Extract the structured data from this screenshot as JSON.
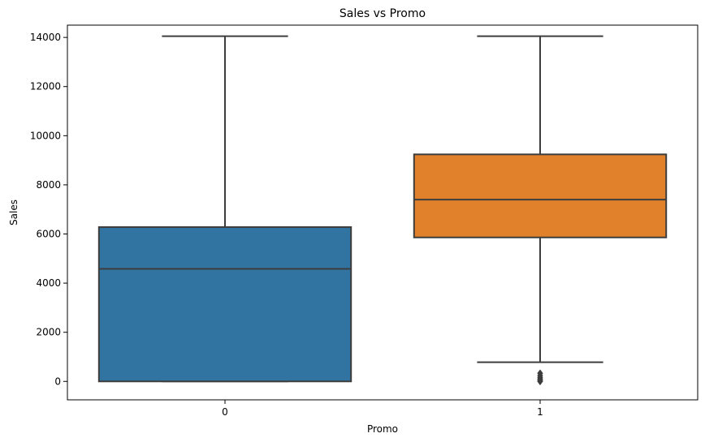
{
  "chart_data": {
    "type": "box",
    "title": "Sales vs Promo",
    "xlabel": "Promo",
    "ylabel": "Sales",
    "categories": [
      "0",
      "1"
    ],
    "ylim": [
      -750,
      14500
    ],
    "yticks": [
      0,
      2000,
      4000,
      6000,
      8000,
      10000,
      12000,
      14000
    ],
    "grid": false,
    "legend": "none",
    "boxes": [
      {
        "category": "0",
        "whisker_low": 0,
        "q1": 0,
        "median": 4580,
        "q3": 6280,
        "whisker_high": 14050,
        "outliers": [],
        "color": "#3274a1"
      },
      {
        "category": "1",
        "whisker_low": 780,
        "q1": 5860,
        "median": 7400,
        "q3": 9240,
        "whisker_high": 14050,
        "outliers": [
          0,
          40,
          90,
          150,
          230,
          330
        ],
        "color": "#e1812c"
      }
    ],
    "edge_color": "#3d3d3d"
  }
}
